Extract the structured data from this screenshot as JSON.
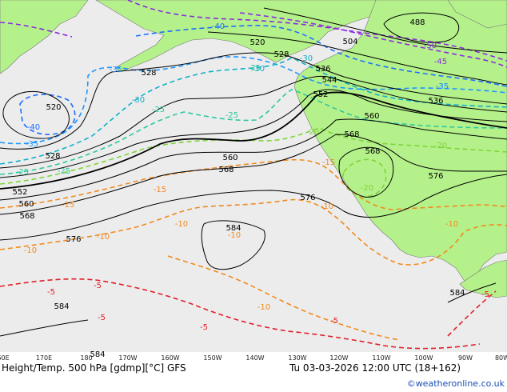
{
  "colors": {
    "ocean": "#ececec",
    "land": "#b5f18b",
    "height_contour": "#000000",
    "temp_cold": "#1e96ff",
    "temp_cyan": "#11b0c8",
    "temp_cool_green": "#2ec8a0",
    "temp_mild": "#7fd43c",
    "temp_orange": "#f08a1e",
    "temp_red": "#e0202a",
    "temp_purple": "#8a2be2",
    "credit": "#1a4fb3"
  },
  "footer": {
    "title": "Height/Temp. 500 hPa [gdmp][°C] GFS",
    "valid": "Tu 03-03-2026 12:00 UTC (18+162)",
    "credit": "©weatheronline.co.uk"
  },
  "longitude_labels": [
    "60E",
    "170E",
    "180",
    "170W",
    "160W",
    "150W",
    "140W",
    "130W",
    "120W",
    "110W",
    "100W",
    "90W",
    "80W"
  ],
  "height_labels": [
    "488",
    "504",
    "520",
    "528",
    "528",
    "536",
    "544",
    "552",
    "520",
    "528",
    "536",
    "552",
    "560",
    "560",
    "568",
    "568",
    "568",
    "560",
    "568",
    "576",
    "576",
    "576",
    "584",
    "584",
    "584",
    "584"
  ],
  "temp_labels": [
    "-40",
    "-40",
    "-35",
    "-35",
    "-30",
    "-30",
    "-25",
    "-25",
    "-30",
    "-35",
    "-45",
    "-50",
    "-35",
    "-25",
    "-20",
    "-20",
    "-15",
    "-15",
    "-10",
    "-10",
    "-10",
    "-10",
    "-10",
    "-10",
    "-10",
    "-5",
    "-5",
    "-5",
    "-5",
    "-5",
    "-5",
    "-15",
    "-20",
    "-25",
    "-25"
  ]
}
